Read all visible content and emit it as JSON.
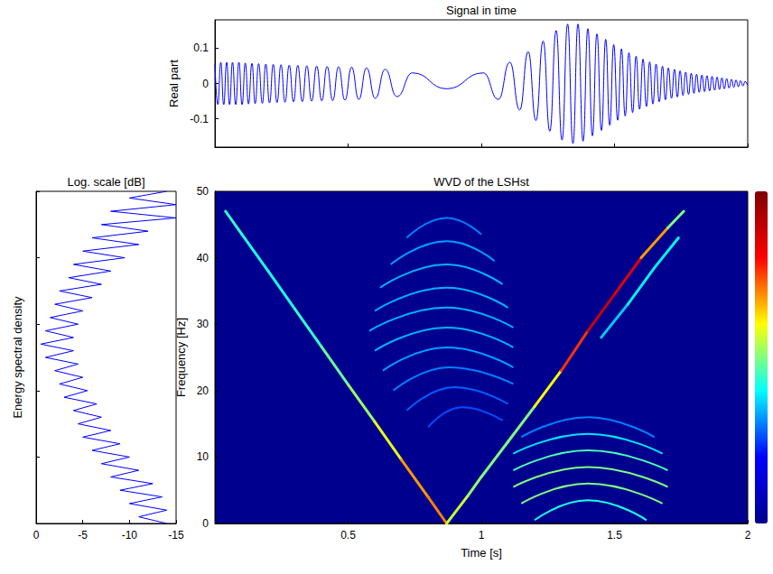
{
  "chart_data": [
    {
      "type": "line",
      "title": "Signal in time",
      "ylabel": "Real part",
      "color": "#0000ff",
      "xlim": [
        0,
        2
      ],
      "ylim": [
        -0.18,
        0.18
      ],
      "xticks": [
        0.5,
        1,
        1.5,
        2
      ],
      "yticks": [
        -0.1,
        0,
        0.1
      ],
      "tick_labels": "y",
      "x": [
        0,
        0.011,
        0.022,
        0.033,
        0.044,
        0.055,
        0.066,
        0.078,
        0.09,
        0.102,
        0.114,
        0.126,
        0.139,
        0.151,
        0.164,
        0.178,
        0.191,
        0.205,
        0.219,
        0.233,
        0.248,
        0.263,
        0.279,
        0.295,
        0.311,
        0.328,
        0.345,
        0.363,
        0.382,
        0.401,
        0.421,
        0.442,
        0.464,
        0.488,
        0.513,
        0.54,
        0.569,
        0.602,
        0.639,
        0.683,
        0.742,
        0.87,
        1.007,
        1.064,
        1.107,
        1.144,
        1.176,
        1.205,
        1.232,
        1.257,
        1.281,
        1.303,
        1.324,
        1.344,
        1.363,
        1.382,
        1.4,
        1.417,
        1.434,
        1.451,
        1.467,
        1.482,
        1.497,
        1.512,
        1.526,
        1.54,
        1.554,
        1.568,
        1.581,
        1.594,
        1.607,
        1.62,
        1.632,
        1.644,
        1.656,
        1.668,
        1.68,
        1.691,
        1.702,
        1.714,
        1.725,
        1.736,
        1.746,
        1.757,
        1.767,
        1.778,
        1.788,
        1.798,
        1.808,
        1.818,
        1.828,
        1.838,
        1.847,
        1.857,
        1.866,
        1.876,
        1.885,
        1.894,
        1.903,
        1.912,
        1.921,
        1.93,
        1.939,
        1.948,
        1.956,
        1.965,
        1.973,
        1.982,
        1.99,
        1.999
      ],
      "values": [
        0.055,
        -0.06,
        0.06,
        -0.06,
        0.06,
        -0.06,
        0.06,
        -0.06,
        0.06,
        -0.06,
        0.058,
        -0.058,
        0.057,
        -0.057,
        0.056,
        -0.056,
        0.055,
        -0.055,
        0.054,
        -0.054,
        0.053,
        -0.053,
        0.052,
        -0.052,
        0.051,
        -0.051,
        0.05,
        -0.05,
        0.049,
        -0.049,
        0.048,
        -0.048,
        0.047,
        -0.047,
        0.046,
        -0.045,
        0.044,
        -0.042,
        0.04,
        -0.037,
        0.03,
        -0.015,
        0.03,
        -0.045,
        0.06,
        -0.075,
        0.09,
        -0.105,
        0.12,
        -0.135,
        0.15,
        -0.16,
        0.168,
        -0.17,
        0.168,
        -0.163,
        0.155,
        -0.148,
        0.14,
        -0.133,
        0.125,
        -0.118,
        0.11,
        -0.104,
        0.098,
        -0.092,
        0.087,
        -0.082,
        0.077,
        -0.073,
        0.069,
        -0.065,
        0.061,
        -0.058,
        0.055,
        -0.052,
        0.049,
        -0.046,
        0.044,
        -0.042,
        0.04,
        -0.038,
        0.036,
        -0.034,
        0.032,
        -0.031,
        0.029,
        -0.028,
        0.026,
        -0.025,
        0.024,
        -0.023,
        0.022,
        -0.021,
        0.02,
        -0.019,
        0.018,
        -0.017,
        0.016,
        -0.015,
        0.014,
        -0.013,
        0.012,
        -0.011,
        0.01,
        -0.009,
        0.008,
        -0.007,
        0.006,
        -0.005
      ]
    },
    {
      "type": "line",
      "title": "Log. scale [dB]",
      "ylabel": "Energy spectral density",
      "color": "#0000ff",
      "xlim": [
        0,
        -15
      ],
      "ylim": [
        0,
        50
      ],
      "xticks": [
        0,
        -5,
        -10,
        -15
      ],
      "yticks": [
        0,
        10,
        20,
        30,
        40,
        50
      ],
      "tick_labels": "x",
      "x": [
        -14,
        -11,
        -14,
        -10,
        -13.5,
        -9,
        -12.5,
        -8,
        -11,
        -7,
        -10,
        -6,
        -9,
        -5,
        -8,
        -4.5,
        -7,
        -4,
        -6.5,
        -3,
        -5.5,
        -2.5,
        -5,
        -2,
        -4.5,
        -1,
        -4,
        -0.5,
        -4,
        -1,
        -4.5,
        -1.5,
        -5,
        -2,
        -6,
        -2.5,
        -7,
        -3.5,
        -8,
        -4,
        -9.5,
        -5,
        -11,
        -6,
        -12,
        -7,
        -15,
        -8,
        -15,
        -10,
        -14
      ],
      "y": [
        0,
        1,
        2,
        3,
        4,
        5,
        6,
        7,
        8,
        9,
        10,
        11,
        12,
        13,
        14,
        15,
        16,
        17,
        18,
        19,
        20,
        21,
        22,
        23,
        24,
        25,
        26,
        27,
        28,
        29,
        30,
        31,
        32,
        33,
        34,
        35,
        36,
        37,
        38,
        39,
        40,
        41,
        42,
        43,
        44,
        45,
        46,
        47,
        48,
        49,
        50
      ]
    },
    {
      "type": "heatmap",
      "title": "WVD of the LSHst",
      "xlabel": "Time [s]",
      "ylabel": "Frequency [Hz]",
      "xlim": [
        0,
        2
      ],
      "ylim": [
        0,
        50
      ],
      "xticks": [
        0.5,
        1,
        1.5,
        2
      ],
      "yticks": [
        0,
        10,
        20,
        30,
        40,
        50
      ],
      "zlim": [
        0,
        1
      ],
      "ridges": [
        {
          "t": [
            0.04,
            0.1,
            0.2,
            0.3,
            0.4,
            0.5,
            0.6,
            0.7,
            0.8,
            0.87
          ],
          "f": [
            47,
            43.6,
            38,
            32.3,
            26.6,
            20.9,
            15.3,
            9.6,
            4,
            0
          ],
          "values": [
            0.45,
            0.4,
            0.4,
            0.4,
            0.45,
            0.5,
            0.55,
            0.65,
            0.8,
            0.7
          ]
        },
        {
          "t": [
            0.87,
            0.95,
            1.0,
            1.1,
            1.2,
            1.3,
            1.4,
            1.5,
            1.6,
            1.7,
            1.76
          ],
          "f": [
            0,
            4.2,
            7,
            12.3,
            17.6,
            23,
            29,
            34.5,
            40,
            44.5,
            47
          ],
          "values": [
            0.6,
            0.55,
            0.5,
            0.5,
            0.5,
            0.75,
            0.9,
            0.95,
            0.85,
            0.6,
            0.4
          ]
        },
        {
          "t": [
            1.45,
            1.55,
            1.65,
            1.74
          ],
          "f": [
            28,
            33,
            38.5,
            43
          ],
          "values": [
            0.3,
            0.35,
            0.38,
            0.35
          ]
        }
      ],
      "fringes": [
        {
          "t": [
            0.72,
            0.87,
            1.0
          ],
          "f": [
            43,
            46,
            43.5
          ],
          "value": 0.25
        },
        {
          "t": [
            0.66,
            0.87,
            1.05
          ],
          "f": [
            39,
            42.5,
            39.5
          ],
          "value": 0.28
        },
        {
          "t": [
            0.62,
            0.87,
            1.08
          ],
          "f": [
            35.5,
            39,
            36
          ],
          "value": 0.3
        },
        {
          "t": [
            0.6,
            0.87,
            1.1
          ],
          "f": [
            32,
            35.5,
            32.5
          ],
          "value": 0.3
        },
        {
          "t": [
            0.58,
            0.87,
            1.12
          ],
          "f": [
            29,
            32.5,
            29.5
          ],
          "value": 0.3
        },
        {
          "t": [
            0.6,
            0.87,
            1.12
          ],
          "f": [
            26,
            29.5,
            26.5
          ],
          "value": 0.3
        },
        {
          "t": [
            0.63,
            0.87,
            1.12
          ],
          "f": [
            23,
            26.5,
            23.5
          ],
          "value": 0.28
        },
        {
          "t": [
            0.67,
            0.88,
            1.12
          ],
          "f": [
            20,
            23.5,
            21
          ],
          "value": 0.25
        },
        {
          "t": [
            0.72,
            0.9,
            1.1
          ],
          "f": [
            17,
            20.5,
            18
          ],
          "value": 0.22
        },
        {
          "t": [
            0.8,
            0.93,
            1.08
          ],
          "f": [
            14.5,
            17.5,
            15.5
          ],
          "value": 0.2
        },
        {
          "t": [
            1.15,
            1.4,
            1.65
          ],
          "f": [
            13,
            16,
            13
          ],
          "value": 0.25
        },
        {
          "t": [
            1.12,
            1.4,
            1.68
          ],
          "f": [
            10.5,
            13.5,
            10.5
          ],
          "value": 0.35
        },
        {
          "t": [
            1.12,
            1.4,
            1.7
          ],
          "f": [
            8,
            11,
            8
          ],
          "value": 0.45
        },
        {
          "t": [
            1.12,
            1.4,
            1.7
          ],
          "f": [
            5.5,
            8.5,
            5.5
          ],
          "value": 0.5
        },
        {
          "t": [
            1.15,
            1.4,
            1.68
          ],
          "f": [
            3,
            6,
            3
          ],
          "value": 0.5
        },
        {
          "t": [
            1.2,
            1.4,
            1.62
          ],
          "f": [
            0.5,
            3.5,
            0.5
          ],
          "value": 0.4
        }
      ]
    }
  ]
}
